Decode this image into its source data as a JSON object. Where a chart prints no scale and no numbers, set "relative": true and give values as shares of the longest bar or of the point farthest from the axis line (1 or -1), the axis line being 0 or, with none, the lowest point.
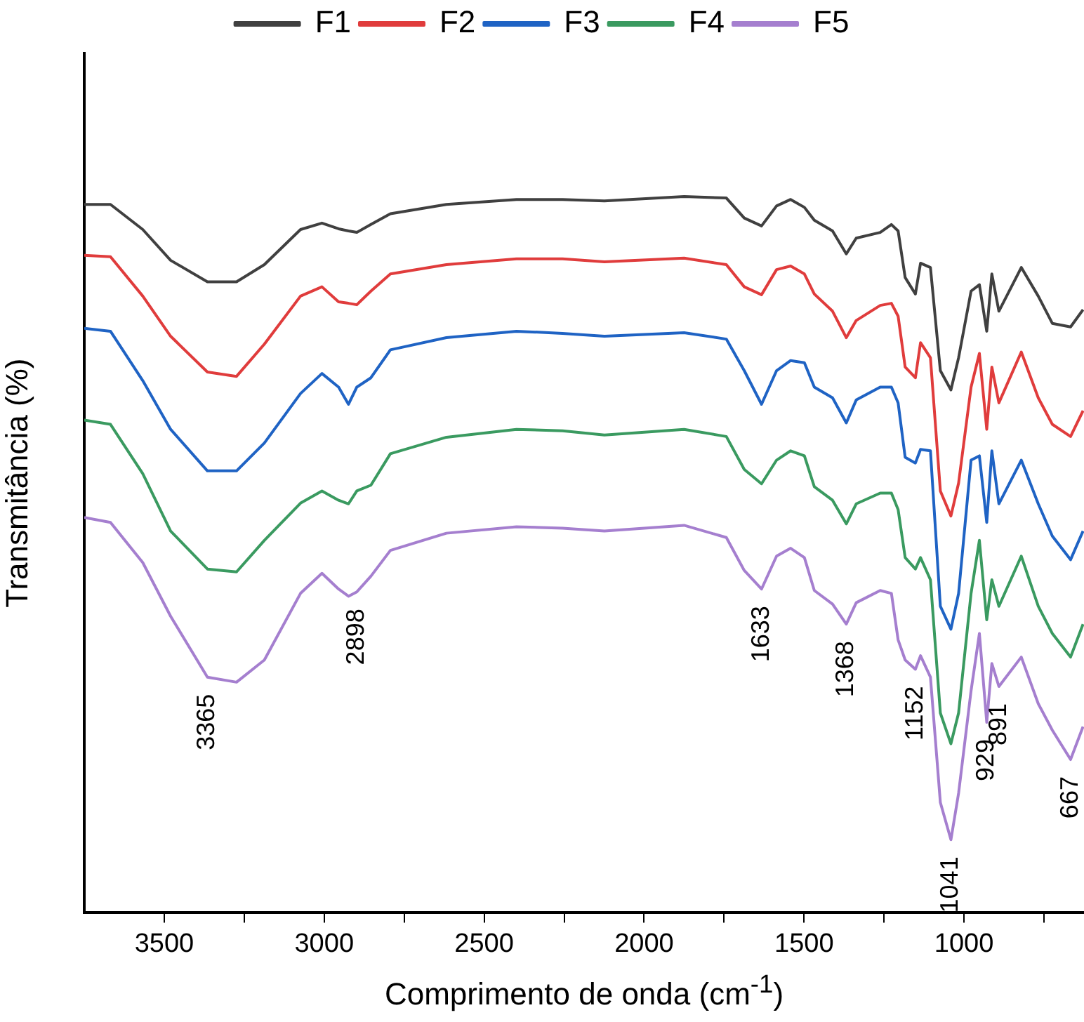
{
  "chart_data": {
    "type": "line",
    "xlabel": "Comprimento de onda (cm$^{-1}$)",
    "ylabel": "Transmitância (%)",
    "relative": true,
    "grid": false,
    "legend": "top",
    "marker": "none",
    "line_style": "solid",
    "xlim": [
      3750,
      625
    ],
    "xticks": [
      3500,
      {
        "value": 3250,
        "label": null
      },
      3000,
      {
        "value": 2750,
        "label": null
      },
      2500,
      {
        "value": 2250,
        "label": null
      },
      2000,
      {
        "value": 1750,
        "label": null
      },
      1500,
      {
        "value": 1250,
        "label": null
      },
      1000,
      {
        "value": 750,
        "label": null
      }
    ],
    "x": [
      3750,
      3668,
      3567,
      3480,
      3365,
      3274,
      3187,
      3074,
      3007,
      2955,
      2924,
      2898,
      2854,
      2793,
      2618,
      2399,
      2255,
      2124,
      1875,
      1743,
      1687,
      1633,
      1586,
      1542,
      1499,
      1468,
      1411,
      1368,
      1337,
      1262,
      1227,
      1206,
      1184,
      1152,
      1136,
      1105,
      1074,
      1041,
      1017,
      978,
      952,
      929,
      913,
      891,
      821,
      768,
      724,
      667,
      628
    ],
    "series": [
      {
        "name": "F1",
        "color": "#404040",
        "values": [
          0.989,
          0.989,
          0.954,
          0.911,
          0.881,
          0.881,
          0.905,
          0.954,
          0.963,
          0.955,
          0.952,
          0.95,
          0.961,
          0.976,
          0.989,
          0.996,
          0.996,
          0.994,
          1.0,
          0.998,
          0.97,
          0.959,
          0.987,
          0.996,
          0.985,
          0.967,
          0.952,
          0.92,
          0.942,
          0.95,
          0.961,
          0.952,
          0.887,
          0.864,
          0.907,
          0.901,
          0.757,
          0.73,
          0.775,
          0.868,
          0.877,
          0.812,
          0.892,
          0.84,
          0.901,
          0.861,
          0.823,
          0.818,
          0.842
        ]
      },
      {
        "name": "F2",
        "color": "#e03c3c",
        "values": [
          0.918,
          0.916,
          0.861,
          0.805,
          0.755,
          0.749,
          0.794,
          0.861,
          0.874,
          0.853,
          0.851,
          0.849,
          0.868,
          0.892,
          0.905,
          0.913,
          0.913,
          0.909,
          0.914,
          0.905,
          0.874,
          0.863,
          0.898,
          0.903,
          0.892,
          0.864,
          0.84,
          0.803,
          0.827,
          0.848,
          0.851,
          0.833,
          0.762,
          0.747,
          0.796,
          0.775,
          0.589,
          0.554,
          0.6,
          0.734,
          0.781,
          0.675,
          0.762,
          0.712,
          0.783,
          0.719,
          0.682,
          0.665,
          0.701
        ]
      },
      {
        "name": "F3",
        "color": "#1f63c4",
        "values": [
          0.816,
          0.812,
          0.743,
          0.675,
          0.617,
          0.617,
          0.656,
          0.725,
          0.753,
          0.734,
          0.71,
          0.734,
          0.747,
          0.786,
          0.803,
          0.812,
          0.809,
          0.805,
          0.81,
          0.801,
          0.757,
          0.71,
          0.757,
          0.771,
          0.768,
          0.734,
          0.719,
          0.684,
          0.716,
          0.734,
          0.734,
          0.712,
          0.636,
          0.628,
          0.647,
          0.645,
          0.428,
          0.396,
          0.446,
          0.632,
          0.638,
          0.545,
          0.645,
          0.571,
          0.632,
          0.571,
          0.526,
          0.493,
          0.533
        ]
      },
      {
        "name": "F4",
        "color": "#3a9a60",
        "values": [
          0.688,
          0.682,
          0.613,
          0.533,
          0.48,
          0.476,
          0.52,
          0.572,
          0.589,
          0.576,
          0.571,
          0.589,
          0.597,
          0.641,
          0.664,
          0.675,
          0.673,
          0.667,
          0.675,
          0.665,
          0.619,
          0.599,
          0.632,
          0.645,
          0.638,
          0.595,
          0.576,
          0.543,
          0.571,
          0.586,
          0.586,
          0.563,
          0.496,
          0.48,
          0.496,
          0.465,
          0.279,
          0.236,
          0.279,
          0.446,
          0.52,
          0.409,
          0.465,
          0.428,
          0.498,
          0.428,
          0.39,
          0.357,
          0.403
        ]
      },
      {
        "name": "F5",
        "color": "#a57fcf",
        "values": [
          0.552,
          0.545,
          0.489,
          0.414,
          0.329,
          0.322,
          0.353,
          0.446,
          0.474,
          0.452,
          0.442,
          0.448,
          0.47,
          0.506,
          0.53,
          0.539,
          0.537,
          0.533,
          0.541,
          0.524,
          0.478,
          0.452,
          0.498,
          0.509,
          0.496,
          0.45,
          0.431,
          0.403,
          0.433,
          0.45,
          0.446,
          0.381,
          0.353,
          0.34,
          0.359,
          0.329,
          0.154,
          0.102,
          0.167,
          0.31,
          0.39,
          0.266,
          0.348,
          0.316,
          0.357,
          0.292,
          0.255,
          0.214,
          0.26
        ]
      }
    ],
    "annotations": [
      {
        "text": "3365",
        "x": 3365,
        "y": 0.329
      },
      {
        "text": "2898",
        "x": 2898,
        "y": 0.448
      },
      {
        "text": "1633",
        "x": 1633,
        "y": 0.452
      },
      {
        "text": "1368",
        "x": 1368,
        "y": 0.403
      },
      {
        "text": "1152",
        "x": 1152,
        "y": 0.34
      },
      {
        "text": "1041",
        "x": 1041,
        "y": 0.102
      },
      {
        "text": "929",
        "x": 929,
        "y": 0.266
      },
      {
        "text": "891",
        "x": 891,
        "y": 0.316
      },
      {
        "text": "667",
        "x": 667,
        "y": 0.214
      }
    ]
  }
}
